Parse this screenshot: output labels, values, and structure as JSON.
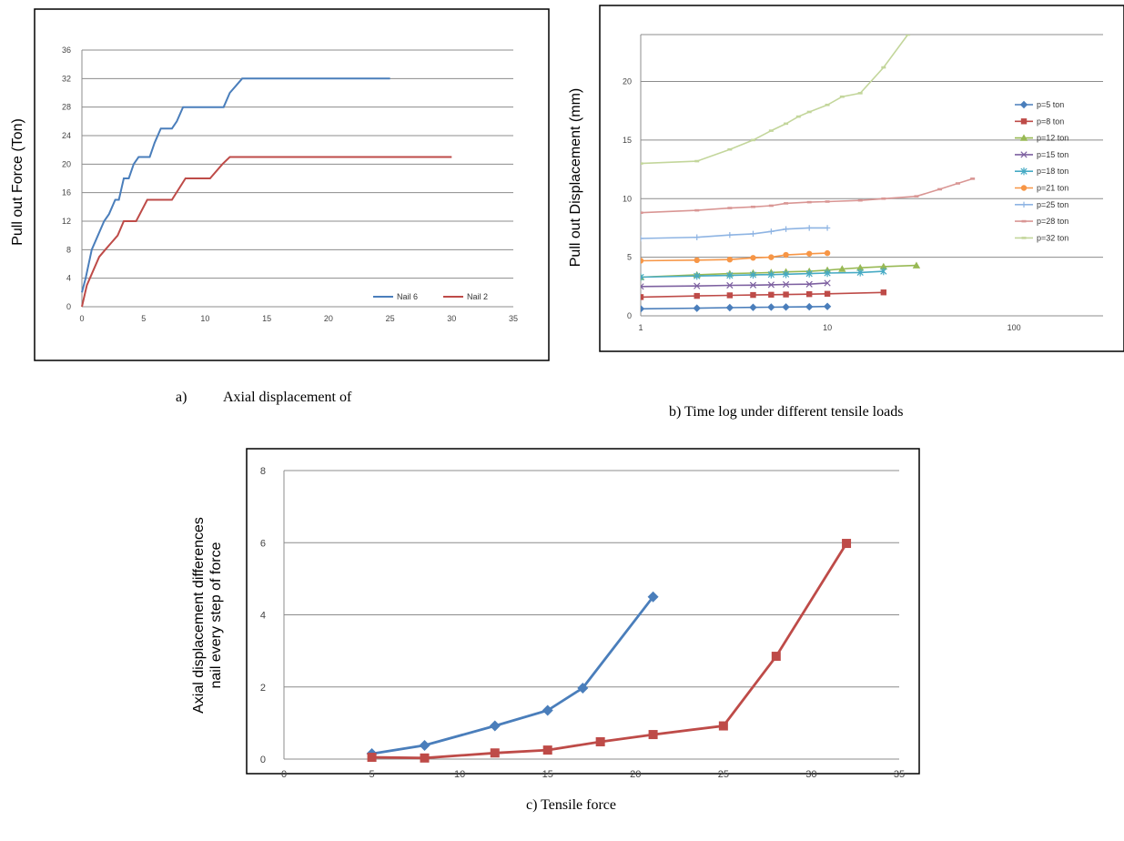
{
  "captions": {
    "a_letter": "a)",
    "a_text": "Axial displacement of",
    "b": "b) Time log under different tensile loads",
    "c": "c) Tensile force"
  },
  "chart_data": [
    {
      "id": "a",
      "type": "line",
      "ylabel": "Pull out Force (Ton)",
      "xlim": [
        0,
        35
      ],
      "ylim": [
        0,
        36
      ],
      "xticks": [
        0,
        5,
        10,
        15,
        20,
        25,
        30,
        35
      ],
      "yticks": [
        0,
        4,
        8,
        12,
        16,
        20,
        24,
        28,
        32,
        36
      ],
      "grid": "horizontal",
      "legend_position": "bottom-right",
      "series": [
        {
          "name": "Nail 6",
          "color": "#4a7ebb",
          "x": [
            0,
            0.3,
            0.8,
            1.3,
            1.8,
            2.2,
            2.7,
            3.0,
            3.4,
            3.8,
            4.2,
            4.6,
            5.0,
            5.5,
            5.9,
            6.4,
            6.8,
            7.3,
            7.7,
            8.2,
            8.7,
            9.1,
            9.6,
            10.0,
            10.5,
            11.0,
            11.5,
            12.0,
            12.5,
            13.0,
            25.0
          ],
          "y": [
            2,
            4,
            8,
            10,
            12,
            13,
            15,
            15,
            18,
            18,
            20,
            21,
            21,
            21,
            23,
            25,
            25,
            25,
            26,
            28,
            28,
            28,
            28,
            28,
            28,
            28,
            28,
            30,
            31,
            32,
            32
          ]
        },
        {
          "name": "Nail 2",
          "color": "#be4b48",
          "x": [
            0,
            0.4,
            0.9,
            1.4,
            1.9,
            2.4,
            2.9,
            3.4,
            4.4,
            5.3,
            6.3,
            7.3,
            8.4,
            9.4,
            10.4,
            11.4,
            12.0,
            30.0
          ],
          "y": [
            0,
            3,
            5,
            7,
            8,
            9,
            10,
            12,
            12,
            15,
            15,
            15,
            18,
            18,
            18,
            20,
            21,
            21
          ]
        }
      ]
    },
    {
      "id": "b",
      "type": "line",
      "ylabel": "Pull out Displacement (mm)",
      "xscale": "log",
      "xlim": [
        1,
        300
      ],
      "ylim": [
        0,
        24
      ],
      "xticks": [
        1,
        10,
        100
      ],
      "yticks": [
        0,
        5,
        10,
        15,
        20
      ],
      "grid": "horizontal",
      "legend_position": "right",
      "series": [
        {
          "name": "p=5 ton",
          "color": "#4a7ebb",
          "marker": "diamond",
          "x": [
            1,
            2,
            3,
            4,
            5,
            6,
            8,
            10
          ],
          "y": [
            0.6,
            0.65,
            0.7,
            0.72,
            0.74,
            0.75,
            0.77,
            0.8
          ]
        },
        {
          "name": "p=8 ton",
          "color": "#be4b48",
          "marker": "square",
          "x": [
            1,
            2,
            3,
            4,
            5,
            6,
            8,
            10,
            20
          ],
          "y": [
            1.6,
            1.7,
            1.75,
            1.78,
            1.8,
            1.82,
            1.85,
            1.88,
            2.0
          ]
        },
        {
          "name": "p=12 ton",
          "color": "#98b954",
          "marker": "triangle",
          "x": [
            1,
            2,
            3,
            4,
            5,
            6,
            8,
            10,
            12,
            15,
            20,
            30
          ],
          "y": [
            3.3,
            3.5,
            3.6,
            3.65,
            3.7,
            3.75,
            3.8,
            3.9,
            4.0,
            4.1,
            4.2,
            4.3
          ]
        },
        {
          "name": "p=15 ton",
          "color": "#7d60a0",
          "marker": "x",
          "x": [
            1,
            2,
            3,
            4,
            5,
            6,
            8,
            10
          ],
          "y": [
            2.5,
            2.55,
            2.6,
            2.62,
            2.65,
            2.68,
            2.7,
            2.8
          ]
        },
        {
          "name": "p=18 ton",
          "color": "#46aac4",
          "marker": "star",
          "x": [
            1,
            2,
            3,
            4,
            5,
            6,
            8,
            10,
            15,
            20
          ],
          "y": [
            3.3,
            3.4,
            3.45,
            3.5,
            3.52,
            3.55,
            3.6,
            3.65,
            3.7,
            3.8
          ]
        },
        {
          "name": "p=21 ton",
          "color": "#f79646",
          "marker": "circle",
          "x": [
            1,
            2,
            3,
            4,
            5,
            6,
            8,
            10
          ],
          "y": [
            4.7,
            4.75,
            4.8,
            4.95,
            5.0,
            5.2,
            5.3,
            5.35
          ]
        },
        {
          "name": "p=25 ton",
          "color": "#8eb4e3",
          "marker": "plus",
          "x": [
            1,
            2,
            3,
            4,
            5,
            6,
            8,
            10
          ],
          "y": [
            6.6,
            6.7,
            6.9,
            7.0,
            7.2,
            7.4,
            7.5,
            7.5
          ]
        },
        {
          "name": "p=28 ton",
          "color": "#d99694",
          "marker": "dash",
          "x": [
            1,
            2,
            3,
            4,
            5,
            6,
            8,
            10,
            15,
            20,
            30,
            40,
            50,
            60
          ],
          "y": [
            8.8,
            9.0,
            9.2,
            9.3,
            9.4,
            9.6,
            9.7,
            9.75,
            9.85,
            10.0,
            10.2,
            10.8,
            11.3,
            11.7
          ]
        },
        {
          "name": "p=32 ton",
          "color": "#c3d69b",
          "marker": "dash",
          "x": [
            1,
            2,
            3,
            4,
            5,
            6,
            7,
            8,
            10,
            12,
            15,
            20,
            27
          ],
          "y": [
            13.0,
            13.2,
            14.2,
            15.0,
            15.8,
            16.4,
            17.0,
            17.4,
            18.0,
            18.7,
            19.0,
            21.2,
            24.0
          ]
        }
      ]
    },
    {
      "id": "c",
      "type": "line",
      "ylabel": "Axial displacement differences nail every step of force",
      "xlim": [
        0,
        35
      ],
      "ylim": [
        0,
        8
      ],
      "xticks": [
        0,
        5,
        10,
        15,
        20,
        25,
        30,
        35
      ],
      "yticks": [
        0,
        2,
        4,
        6,
        8
      ],
      "grid": "horizontal",
      "series": [
        {
          "color": "#4a7ebb",
          "marker": "diamond",
          "x": [
            5,
            8,
            12,
            15,
            17,
            21
          ],
          "y": [
            0.15,
            0.38,
            0.92,
            1.35,
            1.97,
            4.5
          ]
        },
        {
          "color": "#be4b48",
          "marker": "square",
          "x": [
            5,
            8,
            12,
            15,
            18,
            21,
            25,
            28,
            32
          ],
          "y": [
            0.05,
            0.03,
            0.17,
            0.25,
            0.48,
            0.68,
            0.92,
            2.85,
            5.98
          ]
        }
      ]
    }
  ]
}
